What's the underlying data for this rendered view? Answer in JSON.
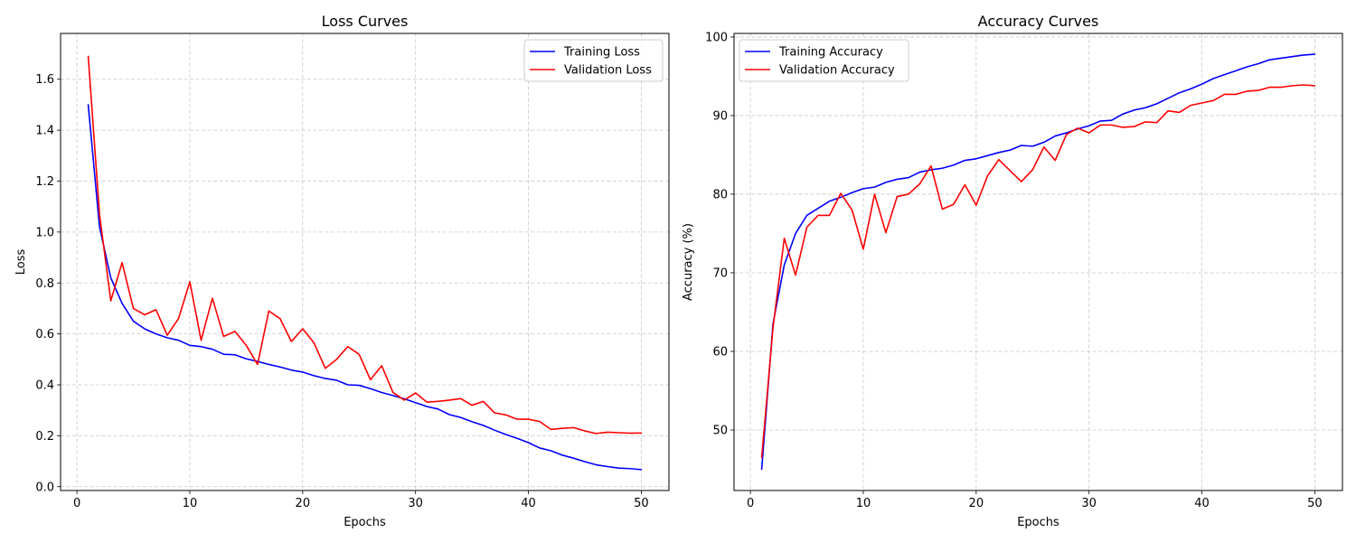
{
  "chart_data": [
    {
      "type": "line",
      "title": "Loss Curves",
      "xlabel": "Epochs",
      "ylabel": "Loss",
      "xlim": [
        -1.45,
        52.45
      ],
      "ylim": [
        -0.015,
        1.78
      ],
      "xticks": [
        0,
        10,
        20,
        30,
        40,
        50
      ],
      "yticks": [
        0.0,
        0.2,
        0.4,
        0.6,
        0.8,
        1.0,
        1.2,
        1.4,
        1.6
      ],
      "ytick_labels": [
        "0.0",
        "0.2",
        "0.4",
        "0.6",
        "0.8",
        "1.0",
        "1.2",
        "1.4",
        "1.6"
      ],
      "grid": true,
      "legend_position": "upper right",
      "x": [
        1,
        2,
        3,
        4,
        5,
        6,
        7,
        8,
        9,
        10,
        11,
        12,
        13,
        14,
        15,
        16,
        17,
        18,
        19,
        20,
        21,
        22,
        23,
        24,
        25,
        26,
        27,
        28,
        29,
        30,
        31,
        32,
        33,
        34,
        35,
        36,
        37,
        38,
        39,
        40,
        41,
        42,
        43,
        44,
        45,
        46,
        47,
        48,
        49,
        50
      ],
      "series": [
        {
          "name": "Training Loss",
          "color": "#0000ff",
          "values": [
            1.5,
            1.02,
            0.82,
            0.72,
            0.65,
            0.62,
            0.6,
            0.585,
            0.575,
            0.555,
            0.55,
            0.54,
            0.52,
            0.518,
            0.502,
            0.492,
            0.48,
            0.47,
            0.458,
            0.45,
            0.436,
            0.425,
            0.418,
            0.4,
            0.398,
            0.385,
            0.37,
            0.358,
            0.345,
            0.33,
            0.315,
            0.305,
            0.283,
            0.272,
            0.255,
            0.241,
            0.222,
            0.205,
            0.19,
            0.173,
            0.152,
            0.141,
            0.124,
            0.112,
            0.098,
            0.086,
            0.079,
            0.073,
            0.071,
            0.067
          ]
        },
        {
          "name": "Validation Loss",
          "color": "#ff0000",
          "values": [
            1.69,
            1.07,
            0.73,
            0.88,
            0.7,
            0.675,
            0.695,
            0.595,
            0.66,
            0.805,
            0.575,
            0.74,
            0.59,
            0.61,
            0.555,
            0.48,
            0.69,
            0.66,
            0.57,
            0.62,
            0.565,
            0.465,
            0.5,
            0.55,
            0.52,
            0.42,
            0.475,
            0.37,
            0.34,
            0.368,
            0.332,
            0.335,
            0.34,
            0.346,
            0.32,
            0.335,
            0.29,
            0.282,
            0.265,
            0.265,
            0.256,
            0.225,
            0.229,
            0.232,
            0.219,
            0.209,
            0.214,
            0.212,
            0.21,
            0.211
          ]
        }
      ]
    },
    {
      "type": "line",
      "title": "Accuracy Curves",
      "xlabel": "Epochs",
      "ylabel": "Accuracy (%)",
      "xlim": [
        -1.45,
        52.45
      ],
      "ylim": [
        42.3,
        100.45
      ],
      "xticks": [
        0,
        10,
        20,
        30,
        40,
        50
      ],
      "yticks": [
        50,
        60,
        70,
        80,
        90,
        100
      ],
      "ytick_labels": [
        "50",
        "60",
        "70",
        "80",
        "90",
        "100"
      ],
      "grid": true,
      "legend_position": "upper left",
      "x": [
        1,
        2,
        3,
        4,
        5,
        6,
        7,
        8,
        9,
        10,
        11,
        12,
        13,
        14,
        15,
        16,
        17,
        18,
        19,
        20,
        21,
        22,
        23,
        24,
        25,
        26,
        27,
        28,
        29,
        30,
        31,
        32,
        33,
        34,
        35,
        36,
        37,
        38,
        39,
        40,
        41,
        42,
        43,
        44,
        45,
        46,
        47,
        48,
        49,
        50
      ],
      "series": [
        {
          "name": "Training Accuracy",
          "color": "#0000ff",
          "values": [
            45.0,
            63.5,
            71.0,
            75.0,
            77.3,
            78.2,
            79.1,
            79.6,
            80.2,
            80.7,
            80.9,
            81.5,
            81.9,
            82.1,
            82.8,
            83.1,
            83.3,
            83.7,
            84.3,
            84.5,
            84.9,
            85.3,
            85.6,
            86.2,
            86.1,
            86.6,
            87.4,
            87.8,
            88.3,
            88.7,
            89.3,
            89.4,
            90.2,
            90.7,
            91.0,
            91.5,
            92.2,
            92.9,
            93.4,
            94.0,
            94.7,
            95.2,
            95.7,
            96.2,
            96.6,
            97.1,
            97.3,
            97.5,
            97.7,
            97.8
          ]
        },
        {
          "name": "Validation Accuracy",
          "color": "#ff0000",
          "values": [
            46.5,
            63.0,
            74.4,
            69.7,
            75.8,
            77.3,
            77.3,
            80.1,
            78.0,
            73.0,
            80.0,
            75.1,
            79.7,
            80.0,
            81.3,
            83.6,
            78.1,
            78.7,
            81.2,
            78.6,
            82.3,
            84.4,
            83.0,
            81.6,
            83.1,
            86.0,
            84.3,
            87.6,
            88.4,
            87.8,
            88.8,
            88.8,
            88.5,
            88.6,
            89.2,
            89.1,
            90.6,
            90.4,
            91.3,
            91.6,
            91.9,
            92.7,
            92.7,
            93.1,
            93.2,
            93.6,
            93.6,
            93.8,
            93.9,
            93.8
          ]
        }
      ]
    }
  ]
}
